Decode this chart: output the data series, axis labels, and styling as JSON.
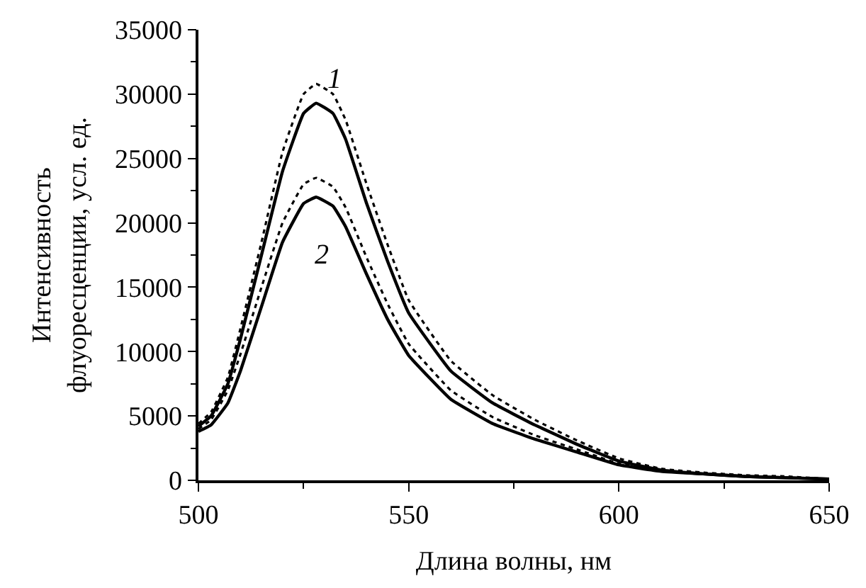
{
  "chart_data": {
    "type": "line",
    "xlabel": "Длина волны, нм",
    "ylabel": "Интенсивность\nфлуоресценции, усл. ед.",
    "x": [
      500,
      503,
      507,
      510,
      515,
      520,
      525,
      528,
      532,
      535,
      540,
      545,
      550,
      560,
      570,
      580,
      590,
      600,
      610,
      620,
      630,
      640,
      650
    ],
    "series": [
      {
        "color": "#000000",
        "line_style": "solid",
        "values": [
          4200,
          5000,
          7500,
          11000,
          17500,
          24000,
          28500,
          29300,
          28500,
          26500,
          21500,
          17000,
          13000,
          8500,
          6000,
          4300,
          2800,
          1500,
          800,
          500,
          300,
          200,
          100
        ]
      },
      {
        "color": "#000000",
        "line_style": "dotted",
        "values": [
          4400,
          5300,
          8000,
          11800,
          18500,
          25500,
          30000,
          30800,
          30000,
          28000,
          23000,
          18300,
          14000,
          9300,
          6600,
          4700,
          3100,
          1700,
          900,
          600,
          400,
          300,
          100
        ]
      },
      {
        "color": "#000000",
        "line_style": "solid",
        "values": [
          3800,
          4300,
          6000,
          8500,
          13500,
          18500,
          21500,
          22000,
          21300,
          19700,
          16000,
          12500,
          9700,
          6300,
          4400,
          3200,
          2200,
          1200,
          700,
          500,
          300,
          200,
          100
        ]
      },
      {
        "color": "#000000",
        "line_style": "dotted",
        "values": [
          4000,
          4700,
          7000,
          9800,
          15000,
          20000,
          23000,
          23500,
          22800,
          21200,
          17300,
          13700,
          10600,
          7000,
          4900,
          3500,
          2400,
          1300,
          800,
          500,
          300,
          200,
          100
        ]
      }
    ],
    "annotations": [
      "1",
      "2"
    ],
    "xlim": [
      500,
      650
    ],
    "xticks": [
      500,
      550,
      600,
      650
    ],
    "ylim": [
      0,
      35000
    ],
    "yticks": [
      0,
      5000,
      10000,
      15000,
      20000,
      25000,
      30000,
      35000
    ],
    "marker": "none"
  }
}
